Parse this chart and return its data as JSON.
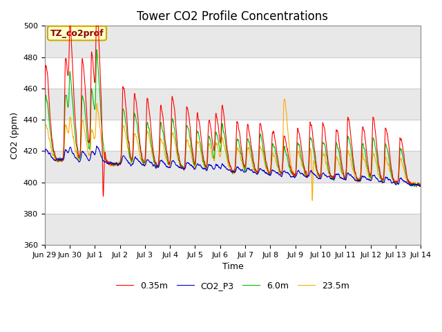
{
  "title": "Tower CO2 Profile Concentrations",
  "xlabel": "Time",
  "ylabel": "CO2 (ppm)",
  "ylim": [
    360,
    500
  ],
  "annotation_text": "TZ_co2prof",
  "annotation_bg": "#ffffcc",
  "annotation_border": "#ccaa00",
  "annotation_text_color": "#880000",
  "line_colors": {
    "0.35m": "#ff0000",
    "CO2_P3": "#0000cc",
    "6.0m": "#00bb00",
    "23.5m": "#ffaa00"
  },
  "line_widths": {
    "0.35m": 0.8,
    "CO2_P3": 0.8,
    "6.0m": 0.8,
    "23.5m": 0.8
  },
  "fig_bg_color": "#ffffff",
  "plot_bg_color": "#ffffff",
  "grid_color": "#cccccc",
  "alt_band_color": "#e8e8e8",
  "xtick_labels": [
    "Jun 29",
    "Jun 30",
    "Jul 1",
    "Jul 2",
    "Jul 3",
    "Jul 4",
    "Jul 5",
    "Jul 6",
    "Jul 7",
    "Jul 8",
    "Jul 9",
    "Jul 10",
    "Jul 11",
    "Jul 12",
    "Jul 13",
    "Jul 14"
  ],
  "xtick_positions": [
    0,
    1,
    2,
    3,
    4,
    5,
    6,
    7,
    8,
    9,
    10,
    11,
    12,
    13,
    14,
    15
  ],
  "ytick_values": [
    360,
    380,
    400,
    420,
    440,
    460,
    480,
    500
  ],
  "title_fontsize": 12,
  "axis_label_fontsize": 9,
  "tick_fontsize": 8,
  "legend_fontsize": 9,
  "num_points_per_day": 144
}
